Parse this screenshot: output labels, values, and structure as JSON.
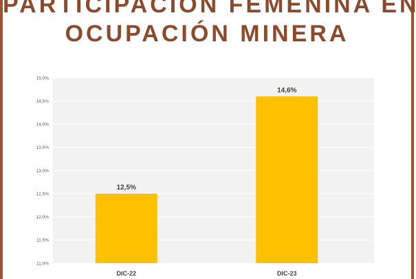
{
  "header": {
    "title_line1": "PARTICIPACIÓN FEMENINA EN",
    "title_line2": "OCUPACIÓN MINERA"
  },
  "colors": {
    "bar": "#FFC000",
    "title": "#8B4A2B",
    "frame": "#A0522D",
    "plot_bg": "#F2F2F2",
    "grid": "#FFFFFF"
  },
  "chart_data": {
    "type": "bar",
    "categories": [
      "DIC-22",
      "DIC-23"
    ],
    "values": [
      12.5,
      14.6
    ],
    "data_labels": [
      "12,5%",
      "14,6%"
    ],
    "ylim": [
      11.0,
      15.0
    ],
    "yticks": [
      11.0,
      11.5,
      12.0,
      12.5,
      13.0,
      13.5,
      14.0,
      14.5,
      15.0
    ],
    "ytick_labels": [
      "11,0%",
      "11,5%",
      "12,0%",
      "12,5%",
      "13,0%",
      "13,5%",
      "14,0%",
      "14,5%",
      "15,0%"
    ],
    "grid": true,
    "legend": "none"
  }
}
